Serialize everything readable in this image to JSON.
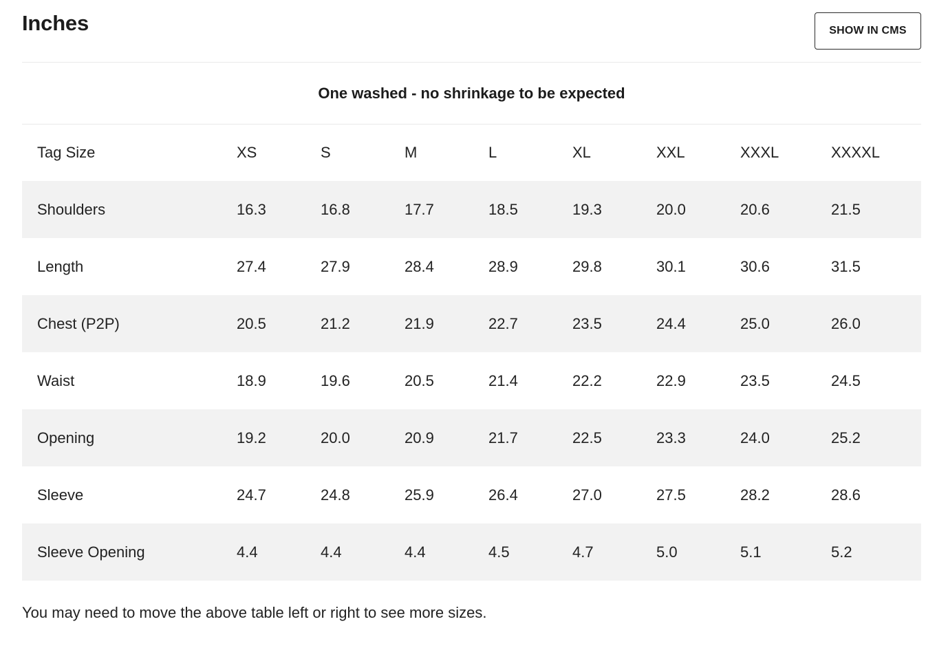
{
  "header": {
    "title": "Inches",
    "cms_button_label": "SHOW IN CMS"
  },
  "note": "One washed - no shrinkage to be expected",
  "table": {
    "columns": [
      "Tag Size",
      "XS",
      "S",
      "M",
      "L",
      "XL",
      "XXL",
      "XXXL",
      "XXXXL"
    ],
    "rows": [
      {
        "label": "Shoulders",
        "values": [
          "16.3",
          "16.8",
          "17.7",
          "18.5",
          "19.3",
          "20.0",
          "20.6",
          "21.5"
        ]
      },
      {
        "label": "Length",
        "values": [
          "27.4",
          "27.9",
          "28.4",
          "28.9",
          "29.8",
          "30.1",
          "30.6",
          "31.5"
        ]
      },
      {
        "label": "Chest (P2P)",
        "values": [
          "20.5",
          "21.2",
          "21.9",
          "22.7",
          "23.5",
          "24.4",
          "25.0",
          "26.0"
        ]
      },
      {
        "label": "Waist",
        "values": [
          "18.9",
          "19.6",
          "20.5",
          "21.4",
          "22.2",
          "22.9",
          "23.5",
          "24.5"
        ]
      },
      {
        "label": "Opening",
        "values": [
          "19.2",
          "20.0",
          "20.9",
          "21.7",
          "22.5",
          "23.3",
          "24.0",
          "25.2"
        ]
      },
      {
        "label": "Sleeve",
        "values": [
          "24.7",
          "24.8",
          "25.9",
          "26.4",
          "27.0",
          "27.5",
          "28.2",
          "28.6"
        ]
      },
      {
        "label": "Sleeve Opening",
        "values": [
          "4.4",
          "4.4",
          "4.4",
          "4.5",
          "4.7",
          "5.0",
          "5.1",
          "5.2"
        ]
      }
    ]
  },
  "footnote": "You may need to move the above table left or right to see more sizes."
}
